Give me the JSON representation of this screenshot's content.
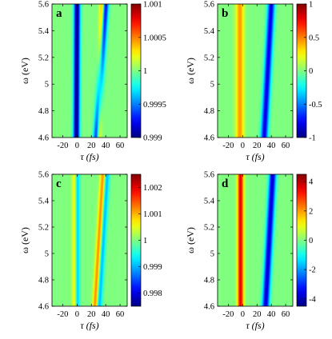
{
  "chart_data": [
    {
      "panel_label": "a",
      "type": "heatmap",
      "xlabel": "τ (fs)",
      "ylabel": "ω (eV)",
      "xlim": [
        -35,
        70
      ],
      "ylim": [
        4.6,
        5.6
      ],
      "x_ticks": [
        "-20",
        "0",
        "20",
        "40",
        "60"
      ],
      "x_tick_values": [
        -20,
        0,
        20,
        40,
        60
      ],
      "y_ticks": [
        "4.6",
        "4.8",
        "5",
        "5.2",
        "5.4",
        "5.6"
      ],
      "y_tick_values": [
        4.6,
        4.8,
        5.0,
        5.2,
        5.4,
        5.6
      ],
      "colorbar": {
        "min": 0.999,
        "max": 1.001,
        "ticks": [
          "0.999",
          "0.9995",
          "1",
          "1.0005",
          "1.001"
        ],
        "tick_values": [
          0.999,
          0.9995,
          1.0,
          1.0005,
          1.001
        ]
      },
      "background": 1.0,
      "features": [
        {
          "x_at_min": -1,
          "x_at_max": 0,
          "width": 3.0,
          "amplitude": -0.001
        },
        {
          "x_at_min": 27,
          "x_at_max": 40,
          "width": 3.0,
          "amplitude": -0.0008
        },
        {
          "x_at_min": 30,
          "x_at_max": 35,
          "width": 2.5,
          "amplitude": 0.0005
        }
      ]
    },
    {
      "panel_label": "b",
      "type": "heatmap",
      "xlabel": "τ (fs)",
      "ylabel": "ω (eV)",
      "xlim": [
        -35,
        70
      ],
      "ylim": [
        4.6,
        5.6
      ],
      "x_ticks": [
        "-20",
        "0",
        "20",
        "40",
        "60"
      ],
      "x_tick_values": [
        -20,
        0,
        20,
        40,
        60
      ],
      "y_ticks": [
        "4.6",
        "4.8",
        "5",
        "5.2",
        "5.4",
        "5.6"
      ],
      "y_tick_values": [
        4.6,
        4.8,
        5.0,
        5.2,
        5.4,
        5.6
      ],
      "colorbar": {
        "min": -1,
        "max": 1,
        "ticks": [
          "-1",
          "-0.5",
          "0",
          "0.5",
          "1"
        ],
        "tick_values": [
          -1,
          -0.5,
          0,
          0.5,
          1
        ]
      },
      "background": 0.0,
      "features": [
        {
          "x_at_min": -4,
          "x_at_max": -4,
          "width": 4.0,
          "amplitude": 0.45
        },
        {
          "x_at_min": 30,
          "x_at_max": 40,
          "width": 3.5,
          "amplitude": -0.8
        }
      ]
    },
    {
      "panel_label": "c",
      "type": "heatmap",
      "xlabel": "τ (fs)",
      "ylabel": "ω (eV)",
      "xlim": [
        -35,
        70
      ],
      "ylim": [
        4.6,
        5.6
      ],
      "x_ticks": [
        "-20",
        "0",
        "20",
        "40",
        "60"
      ],
      "x_tick_values": [
        -20,
        0,
        20,
        40,
        60
      ],
      "y_ticks": [
        "4.6",
        "4.8",
        "5",
        "5.2",
        "5.4",
        "5.6"
      ],
      "y_tick_values": [
        4.6,
        4.8,
        5.0,
        5.2,
        5.4,
        5.6
      ],
      "colorbar": {
        "min": 0.9975,
        "max": 1.0025,
        "ticks": [
          "0.998",
          "0.999",
          "1",
          "1.001",
          "1.002"
        ],
        "tick_values": [
          0.998,
          0.999,
          1.0,
          1.001,
          1.002
        ]
      },
      "background": 1.0,
      "features": [
        {
          "x_at_min": -3,
          "x_at_max": -3,
          "width": 2.5,
          "amplitude": 0.001
        },
        {
          "x_at_min": 0,
          "x_at_max": 0,
          "width": 2.5,
          "amplitude": -0.0012
        },
        {
          "x_at_min": 26,
          "x_at_max": 37,
          "width": 3.0,
          "amplitude": 0.0016
        },
        {
          "x_at_min": 30,
          "x_at_max": 41,
          "width": 3.0,
          "amplitude": -0.0014
        }
      ]
    },
    {
      "panel_label": "d",
      "type": "heatmap",
      "xlabel": "τ (fs)",
      "ylabel": "ω (eV)",
      "xlim": [
        -35,
        70
      ],
      "ylim": [
        4.6,
        5.6
      ],
      "x_ticks": [
        "-20",
        "0",
        "20",
        "40",
        "60"
      ],
      "x_tick_values": [
        -20,
        0,
        20,
        40,
        60
      ],
      "y_ticks": [
        "4.6",
        "4.8",
        "5",
        "5.2",
        "5.4",
        "5.6"
      ],
      "y_tick_values": [
        4.6,
        4.8,
        5.0,
        5.2,
        5.4,
        5.6
      ],
      "colorbar": {
        "min": -4.5,
        "max": 4.5,
        "ticks": [
          "-4",
          "-2",
          "0",
          "2",
          "4"
        ],
        "tick_values": [
          -4,
          -2,
          0,
          2,
          4
        ]
      },
      "background": 0.0,
      "features": [
        {
          "x_at_min": -3,
          "x_at_max": -3,
          "width": 3.0,
          "amplitude": 3.6
        },
        {
          "x_at_min": 32,
          "x_at_max": 42,
          "width": 3.5,
          "amplitude": -3.8
        }
      ]
    }
  ]
}
